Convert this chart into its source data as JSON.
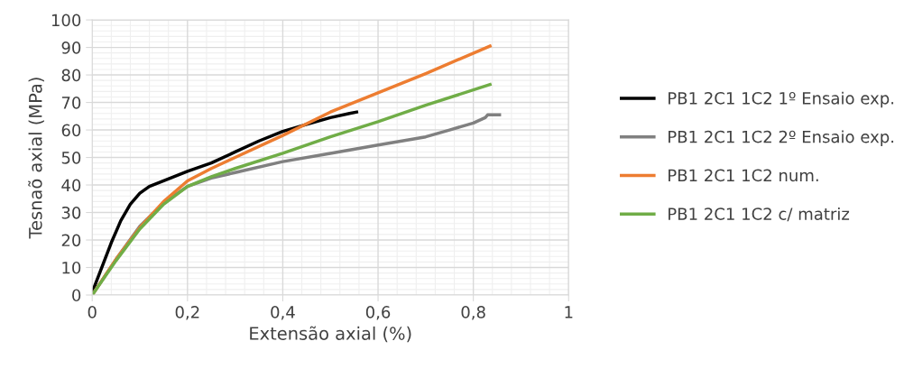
{
  "chart_data": {
    "type": "line",
    "xlabel": "Extensão axial (%)",
    "ylabel": "Tesnaõ axial (MPa)",
    "xlim": [
      0,
      1
    ],
    "xticks": [
      0,
      {
        "value": 0.2,
        "label": "0,2"
      },
      {
        "value": 0.4,
        "label": "0,4"
      },
      {
        "value": 0.6,
        "label": "0,6"
      },
      {
        "value": 0.8,
        "label": "0,8"
      },
      1
    ],
    "ylim": [
      0,
      100
    ],
    "yticks": [
      0,
      10,
      20,
      30,
      40,
      50,
      60,
      70,
      80,
      90,
      100
    ],
    "grid": true,
    "legend": "right",
    "marker": "none",
    "line_style": "solid",
    "series": [
      {
        "name": "PB1 2C1 1C2 1º Ensaio exp.",
        "color": "#000000",
        "x": [
          0,
          0.02,
          0.04,
          0.06,
          0.08,
          0.1,
          0.12,
          0.15,
          0.2,
          0.25,
          0.3,
          0.35,
          0.4,
          0.45,
          0.5,
          0.54,
          0.555
        ],
        "values": [
          1,
          10,
          19,
          27,
          33,
          37,
          39.5,
          41.5,
          45,
          48,
          52,
          56,
          59.5,
          62,
          64.5,
          66,
          66.5
        ]
      },
      {
        "name": "PB1 2C1 1C2 2º Ensaio exp.",
        "color": "#808080",
        "x": [
          0,
          0.05,
          0.1,
          0.15,
          0.2,
          0.25,
          0.3,
          0.4,
          0.5,
          0.6,
          0.7,
          0.75,
          0.8,
          0.825,
          0.83,
          0.855
        ],
        "values": [
          0,
          13,
          25,
          33.5,
          39.5,
          42.5,
          44.5,
          48.5,
          51.5,
          54.5,
          57.5,
          60,
          62.5,
          64.5,
          65.5,
          65.5
        ]
      },
      {
        "name": "PB1 2C1 1C2 num.",
        "color": "#ed7d31",
        "x": [
          0,
          0.05,
          0.1,
          0.15,
          0.2,
          0.25,
          0.3,
          0.4,
          0.5,
          0.6,
          0.7,
          0.835
        ],
        "values": [
          0,
          13,
          24.5,
          34,
          41.5,
          46,
          50,
          58,
          66.5,
          73.5,
          80.5,
          90.5
        ]
      },
      {
        "name": "PB1 2C1 1C2 c/ matriz",
        "color": "#70ad47",
        "x": [
          0,
          0.05,
          0.1,
          0.15,
          0.2,
          0.25,
          0.3,
          0.4,
          0.5,
          0.6,
          0.7,
          0.835
        ],
        "values": [
          0,
          12.5,
          24,
          33,
          39.5,
          43,
          46,
          51.5,
          57.5,
          63,
          69,
          76.5
        ]
      }
    ]
  }
}
